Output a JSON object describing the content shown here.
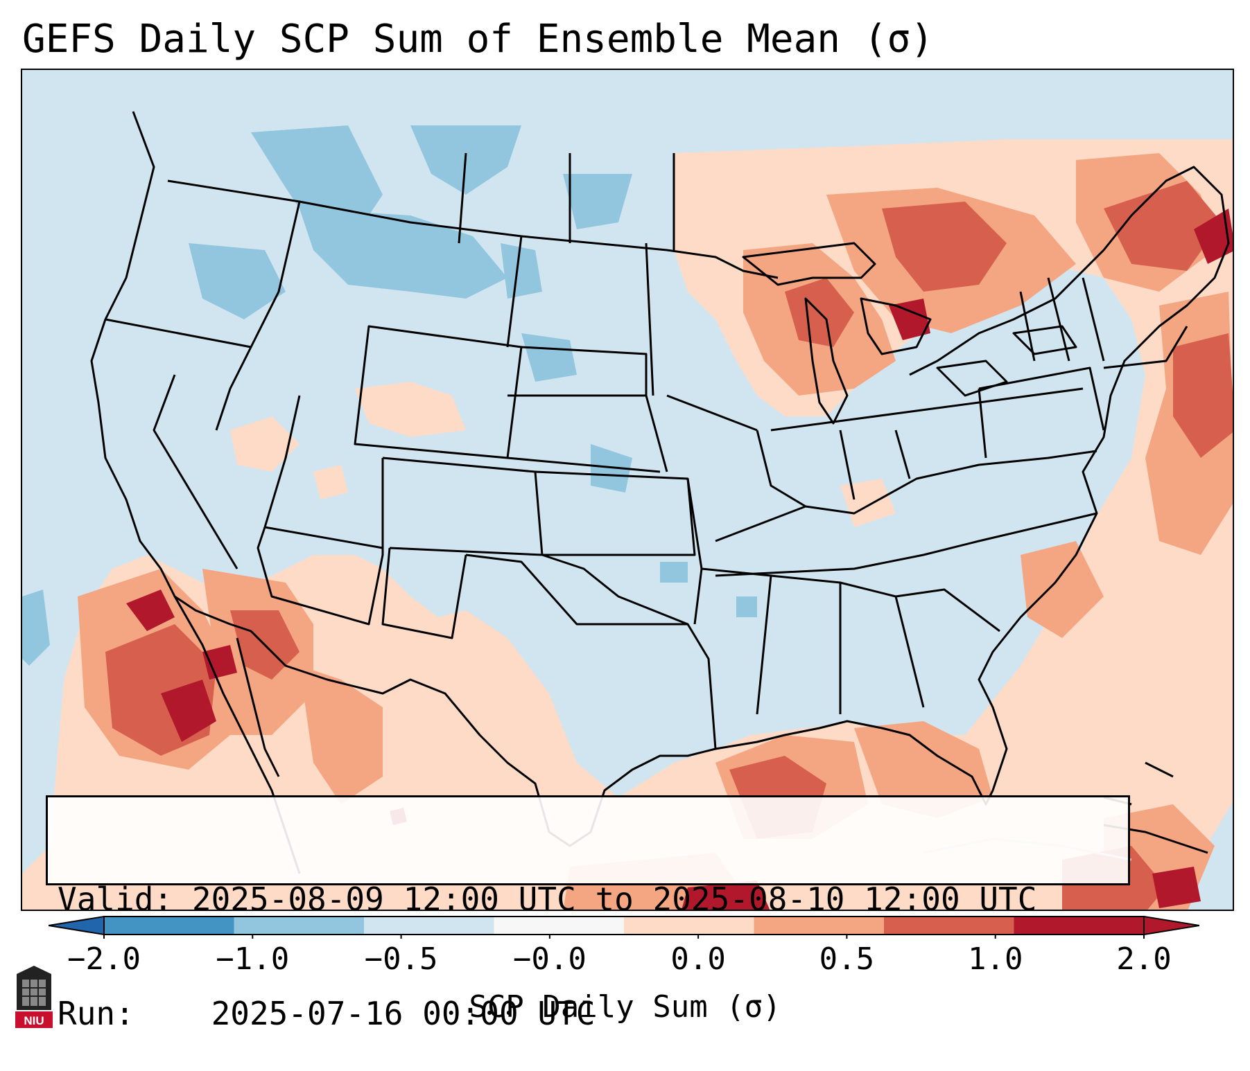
{
  "title": "GEFS Daily SCP Sum of Ensemble Mean (σ)",
  "info": {
    "valid_label": "Valid:",
    "valid_value": "2025-08-09 12:00 UTC to 2025-08-10 12:00 UTC",
    "run_label": "Run:",
    "run_value": "2025-07-16 00:00 UTC"
  },
  "colorbar": {
    "label": "SCP Daily Sum (σ)",
    "ticks": [
      "−2.0",
      "−1.0",
      "−0.5",
      "−0.0",
      "0.0",
      "0.5",
      "1.0",
      "2.0"
    ],
    "colors": [
      "#4393c3",
      "#92c5de",
      "#d1e5f0",
      "#f7f7f7",
      "#fddbc7",
      "#f4a582",
      "#d6604d",
      "#b2182b"
    ],
    "extend_low_color": "#2166ac",
    "extend_high_color": "#b2182b"
  },
  "map": {
    "region": "Continental United States",
    "background_color": "#d1e5f0",
    "line_color": "#000000"
  },
  "logo": {
    "text": "NIU",
    "color": "#c8102e"
  }
}
